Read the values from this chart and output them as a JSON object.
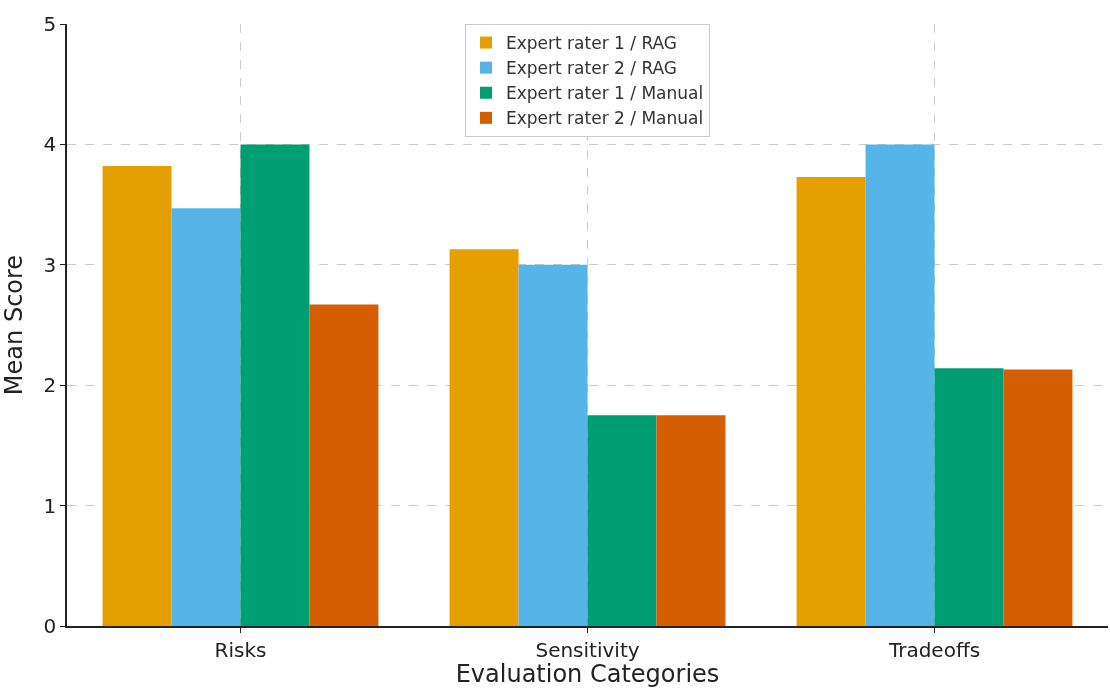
{
  "chart_data": {
    "type": "bar",
    "xlabel": "Evaluation Categories",
    "ylabel": "Mean Score",
    "categories": [
      "Risks",
      "Sensitivity",
      "Tradeoffs"
    ],
    "series": [
      {
        "name": "Expert rater 1 / RAG",
        "color": "#e69f00",
        "values": [
          3.82,
          3.13,
          3.73
        ]
      },
      {
        "name": "Expert rater 2 / RAG",
        "color": "#56b4e9",
        "values": [
          3.47,
          3.0,
          4.0
        ]
      },
      {
        "name": "Expert rater 1 / Manual",
        "color": "#009e73",
        "values": [
          4.0,
          1.75,
          2.14
        ]
      },
      {
        "name": "Expert rater 2 / Manual",
        "color": "#d55e00",
        "values": [
          2.67,
          1.75,
          2.13
        ]
      }
    ],
    "ylim": [
      0,
      5
    ],
    "yticks": [
      0,
      1,
      2,
      3,
      4,
      5
    ],
    "grid": true,
    "legend": "top"
  }
}
